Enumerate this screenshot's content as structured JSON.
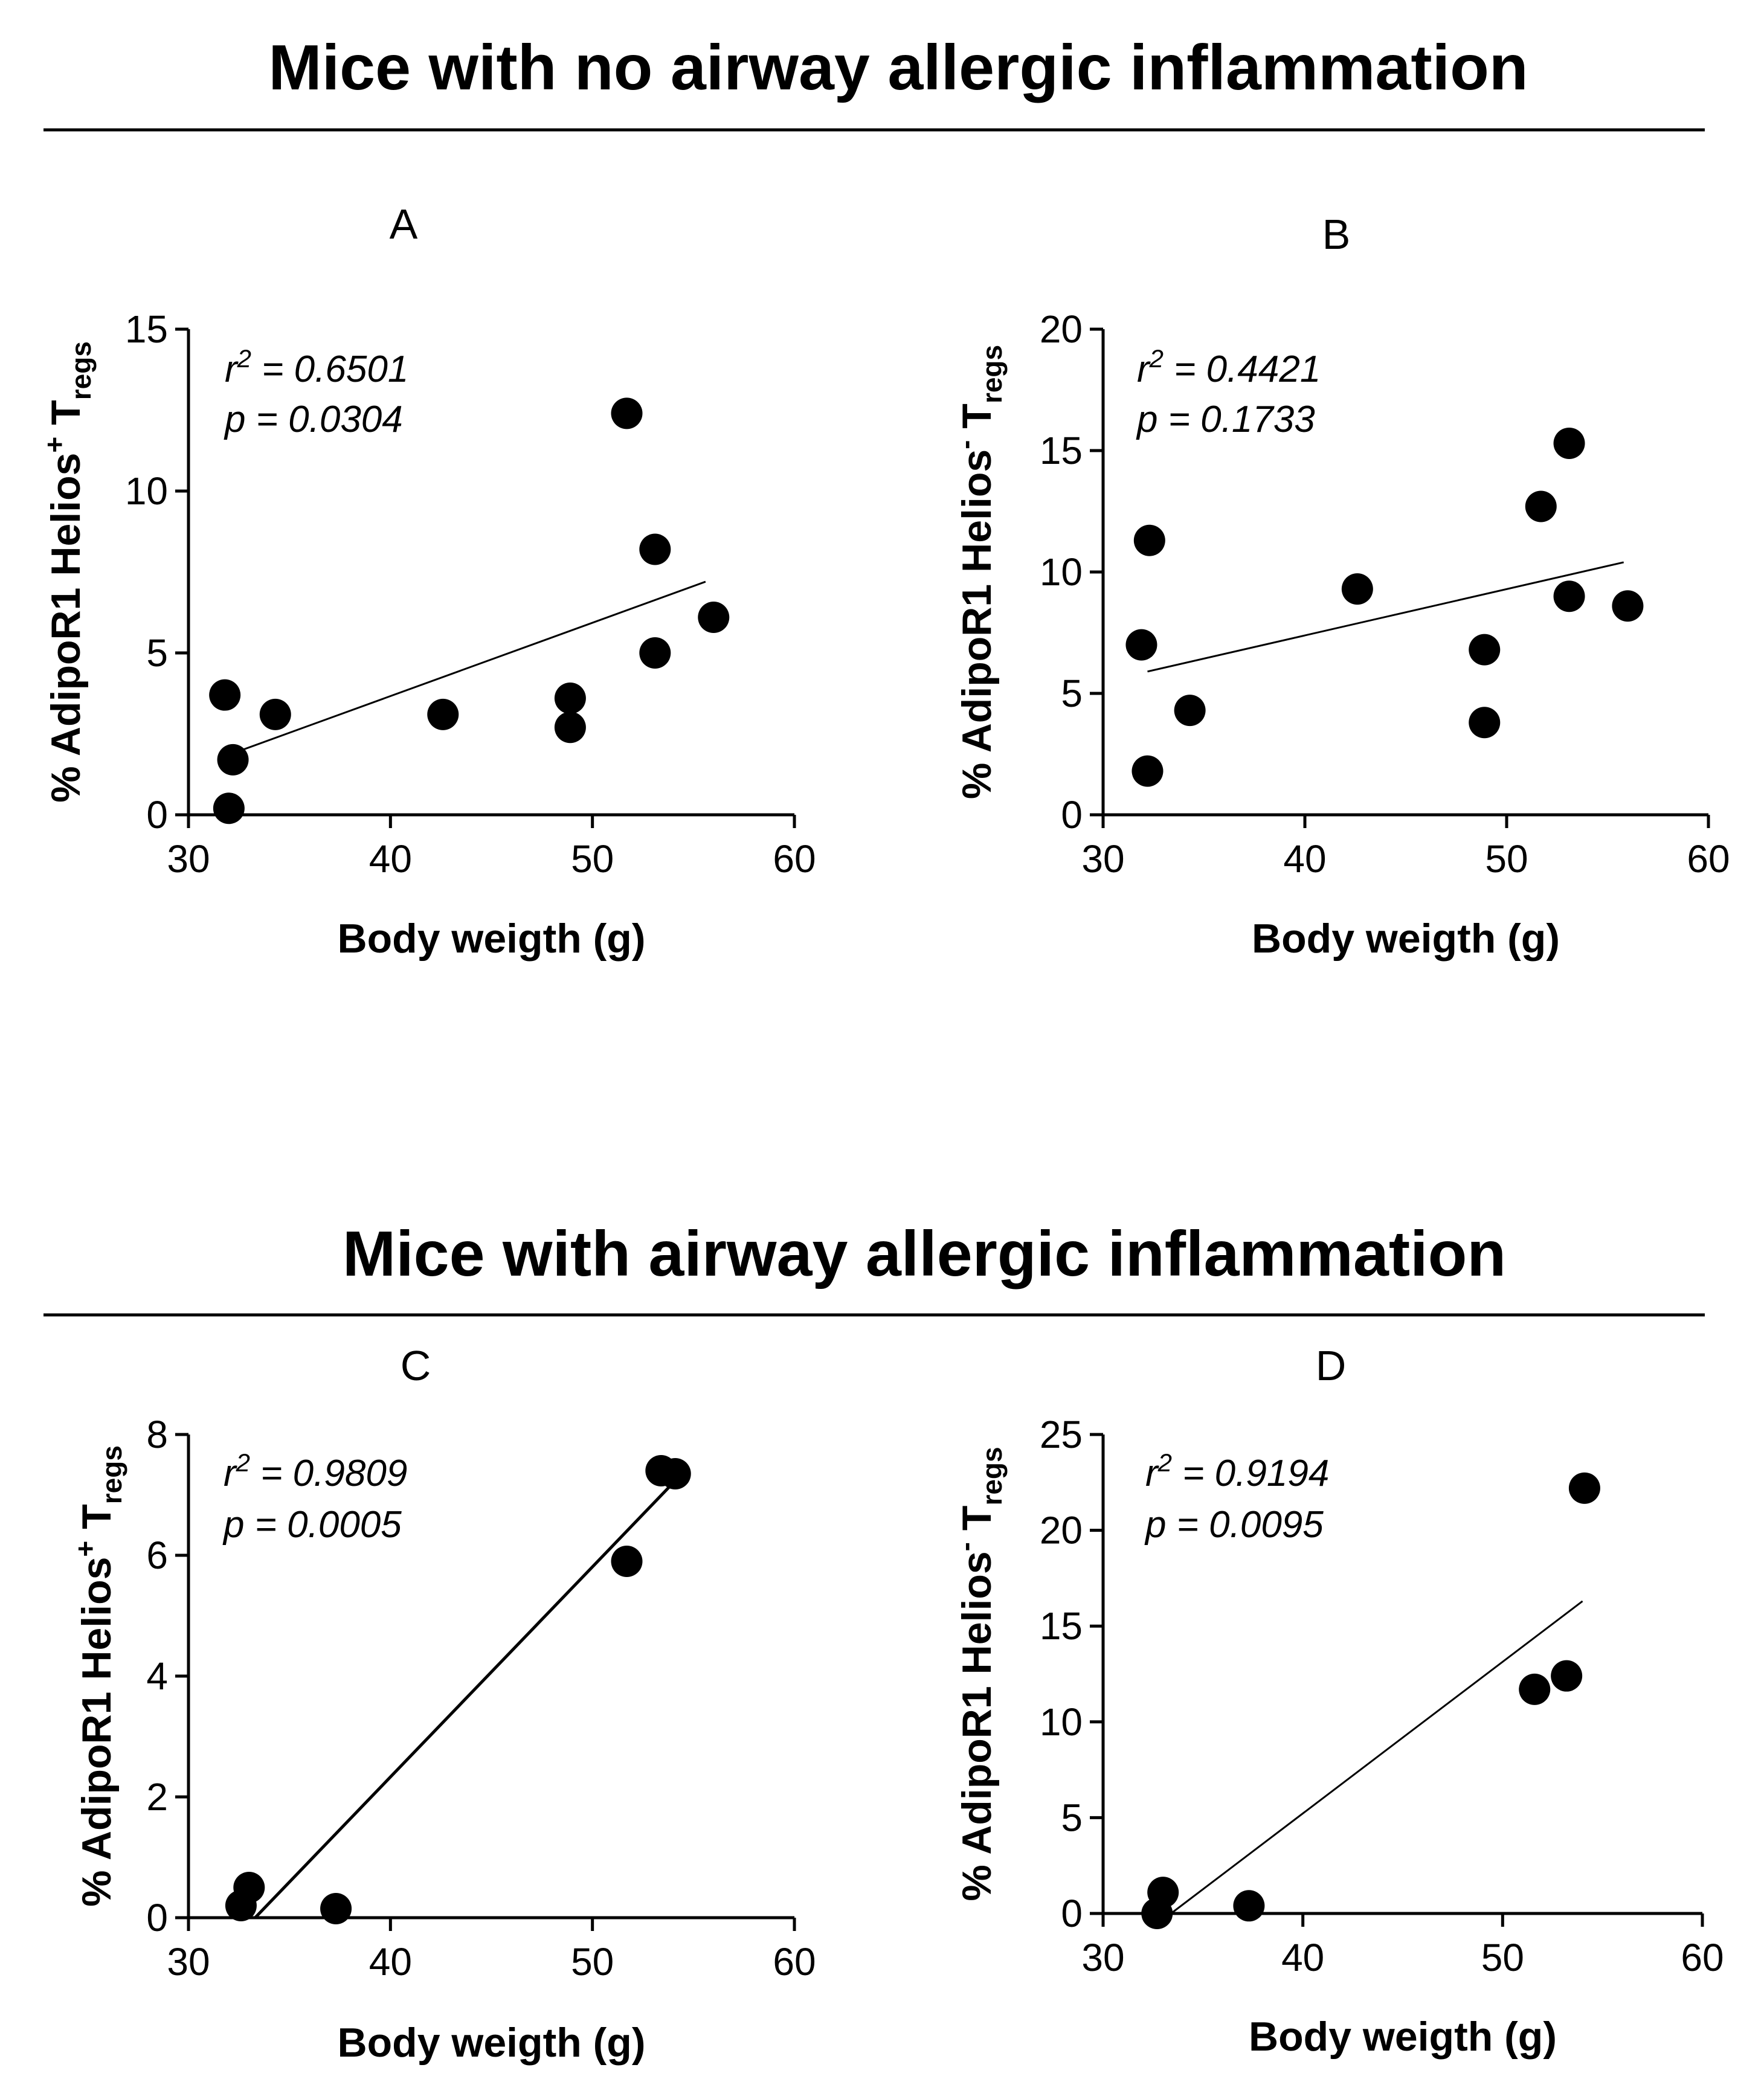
{
  "sections": [
    {
      "title": "Mice with no airway allergic inflammation"
    },
    {
      "title": "Mice with airway allergic inflammation"
    }
  ],
  "chart_data": [
    {
      "type": "scatter",
      "panel": "A",
      "xlabel": "Body weigth (g)",
      "ylabel": {
        "main": "% AdipoR1 Helios",
        "sup": "+",
        "tail": " T",
        "sub": "regs"
      },
      "xlim": [
        30,
        60
      ],
      "ylim": [
        0,
        15
      ],
      "xticks": [
        30,
        40,
        50,
        60
      ],
      "yticks": [
        0,
        5,
        10,
        15
      ],
      "stats": {
        "r_label": "r",
        "r_sup": "2",
        "r_value": " = 0.6501",
        "p_text": "p = 0.0304"
      },
      "points": [
        {
          "x": 31.8,
          "y": 3.7
        },
        {
          "x": 32.2,
          "y": 1.7
        },
        {
          "x": 32.0,
          "y": 0.2
        },
        {
          "x": 34.3,
          "y": 3.1
        },
        {
          "x": 42.6,
          "y": 3.1
        },
        {
          "x": 48.9,
          "y": 3.6
        },
        {
          "x": 48.9,
          "y": 2.7
        },
        {
          "x": 51.7,
          "y": 12.4
        },
        {
          "x": 53.1,
          "y": 8.2
        },
        {
          "x": 53.1,
          "y": 5.0
        },
        {
          "x": 56.0,
          "y": 6.1
        }
      ],
      "fit": {
        "x": [
          32.2,
          55.6
        ],
        "y": [
          1.9,
          7.2
        ]
      },
      "grid": false
    },
    {
      "type": "scatter",
      "panel": "B",
      "xlabel": "Body weigth (g)",
      "ylabel": {
        "main": "% AdipoR1 Helios",
        "sup": "-",
        "tail": " T",
        "sub": "regs"
      },
      "xlim": [
        30,
        60
      ],
      "ylim": [
        0,
        20
      ],
      "xticks": [
        30,
        40,
        50,
        60
      ],
      "yticks": [
        0,
        5,
        10,
        15,
        20
      ],
      "stats": {
        "r_label": "r",
        "r_sup": "2",
        "r_value": " = 0.4421",
        "p_text": "p = 0.1733"
      },
      "points": [
        {
          "x": 31.9,
          "y": 7.0
        },
        {
          "x": 32.3,
          "y": 11.3
        },
        {
          "x": 32.2,
          "y": 1.8
        },
        {
          "x": 34.3,
          "y": 4.3
        },
        {
          "x": 42.6,
          "y": 9.3
        },
        {
          "x": 48.9,
          "y": 6.8
        },
        {
          "x": 48.9,
          "y": 3.8
        },
        {
          "x": 51.7,
          "y": 12.7
        },
        {
          "x": 53.1,
          "y": 15.3
        },
        {
          "x": 53.1,
          "y": 9.0
        },
        {
          "x": 56.0,
          "y": 8.6
        }
      ],
      "fit": {
        "x": [
          32.2,
          55.8
        ],
        "y": [
          5.9,
          10.4
        ]
      },
      "grid": false
    },
    {
      "type": "scatter",
      "panel": "C",
      "xlabel": "Body weigth (g)",
      "ylabel": {
        "main": "% AdipoR1 Helios",
        "sup": "+",
        "tail": " T",
        "sub": "regs"
      },
      "xlim": [
        30,
        60
      ],
      "ylim": [
        0,
        8
      ],
      "xticks": [
        30,
        40,
        50,
        60
      ],
      "yticks": [
        0,
        2,
        4,
        6,
        8
      ],
      "stats": {
        "r_label": "r",
        "r_sup": "2",
        "r_value": " = 0.9809",
        "p_text": "p = 0.0005"
      },
      "points": [
        {
          "x": 32.6,
          "y": 0.2
        },
        {
          "x": 33.0,
          "y": 0.5
        },
        {
          "x": 37.3,
          "y": 0.15
        },
        {
          "x": 51.7,
          "y": 5.9
        },
        {
          "x": 53.4,
          "y": 7.4
        },
        {
          "x": 54.1,
          "y": 7.35
        }
      ],
      "fit": {
        "x": [
          33.3,
          54.0
        ],
        "y": [
          0,
          7.2
        ]
      },
      "grid": false
    },
    {
      "type": "scatter",
      "panel": "D",
      "xlabel": "Body weigth (g)",
      "ylabel": {
        "main": "% AdipoR1 Helios",
        "sup": "-",
        "tail": " T",
        "sub": "regs"
      },
      "xlim": [
        30,
        60
      ],
      "ylim": [
        0,
        25
      ],
      "xticks": [
        30,
        40,
        50,
        60
      ],
      "yticks": [
        0,
        5,
        10,
        15,
        20,
        25
      ],
      "stats": {
        "r_label": "r",
        "r_sup": "2",
        "r_value": " = 0.9194",
        "p_text": "p = 0.0095"
      },
      "points": [
        {
          "x": 32.7,
          "y": 0.0
        },
        {
          "x": 33.0,
          "y": 1.1
        },
        {
          "x": 37.3,
          "y": 0.4
        },
        {
          "x": 51.6,
          "y": 11.7
        },
        {
          "x": 53.2,
          "y": 12.4
        },
        {
          "x": 54.1,
          "y": 22.2
        }
      ],
      "fit": {
        "x": [
          33.4,
          54.0
        ],
        "y": [
          0,
          16.3
        ]
      },
      "grid": false
    }
  ]
}
